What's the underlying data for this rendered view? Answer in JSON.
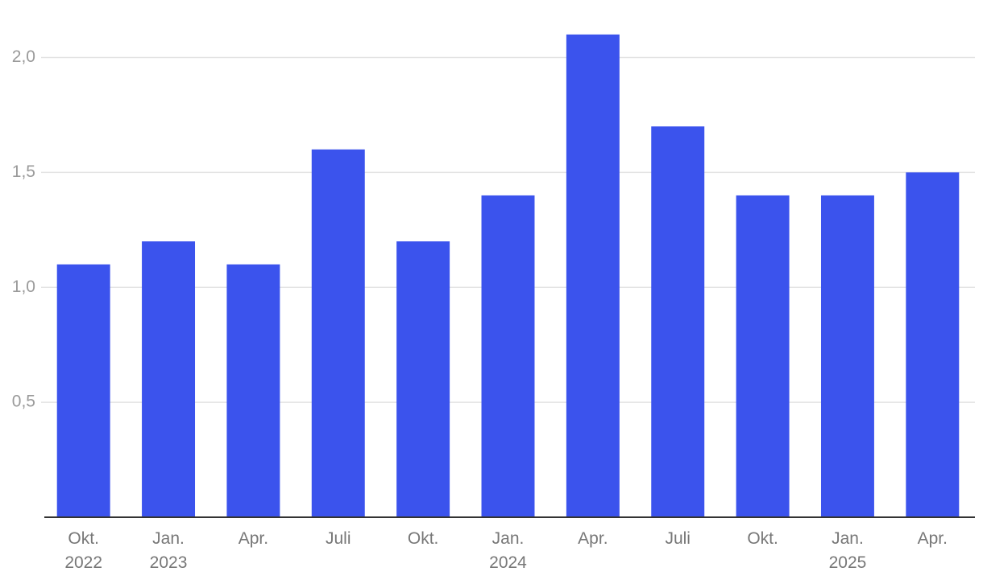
{
  "chart_data": {
    "type": "bar",
    "categories": [
      "Okt.\n2022",
      "Jan.\n2023",
      "Apr.",
      "Juli",
      "Okt.",
      "Jan.\n2024",
      "Apr.",
      "Juli",
      "Okt.",
      "Jan.\n2025",
      "Apr."
    ],
    "values": [
      1.1,
      1.2,
      1.1,
      1.6,
      1.2,
      1.4,
      2.1,
      1.7,
      1.4,
      1.4,
      1.5
    ],
    "color": "#3b53ed",
    "ylim": [
      0,
      2.25
    ],
    "yticks": [
      {
        "value": 0.5,
        "label": "0,5"
      },
      {
        "value": 1.0,
        "label": "1,0"
      },
      {
        "value": 1.5,
        "label": "1,5"
      },
      {
        "value": 2.0,
        "label": "2,0"
      }
    ],
    "grid": true
  }
}
